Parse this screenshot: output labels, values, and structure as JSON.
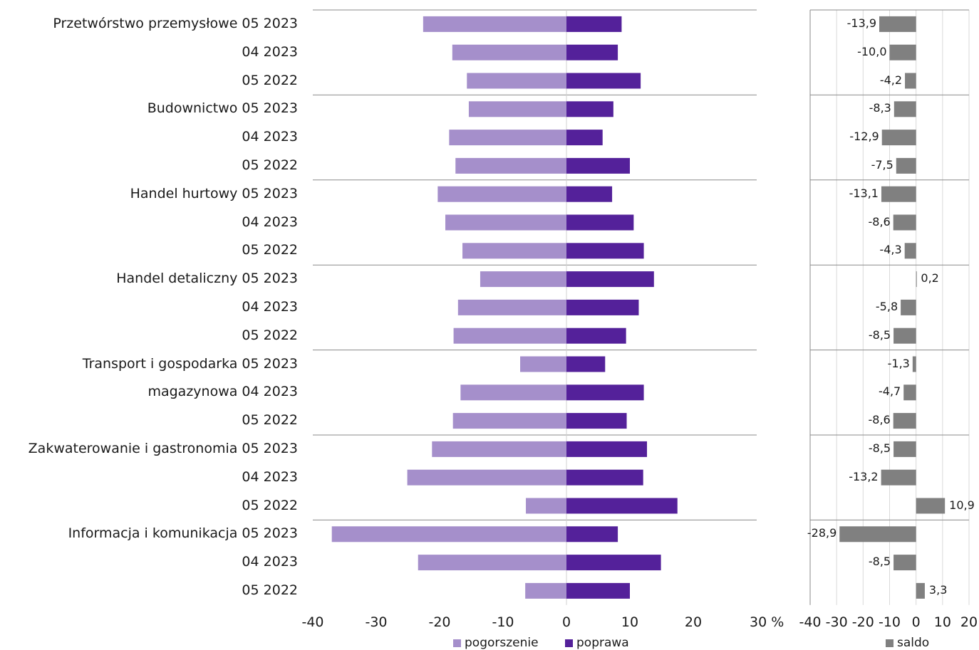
{
  "chart_data": [
    {
      "type": "bar",
      "orientation": "horizontal",
      "groups": [
        "Przetwórstwo przemysłowe",
        "Budownictwo",
        "Handel hurtowy",
        "Handel detaliczny",
        "Transport i gospodarka magazynowa",
        "Zakwaterowanie i gastronomia",
        "Informacja i komunikacja"
      ],
      "rows": [
        {
          "group": "Przetwórstwo przemysłowe",
          "period": "05 2023",
          "pogorszenie": -22.6,
          "poprawa": 8.7
        },
        {
          "group": "",
          "period": "04 2023",
          "pogorszenie": -18.0,
          "poprawa": 8.1
        },
        {
          "group": "",
          "period": "05 2022",
          "pogorszenie": -15.7,
          "poprawa": 11.7
        },
        {
          "group": "Budownictwo",
          "period": "05 2023",
          "pogorszenie": -15.4,
          "poprawa": 7.4
        },
        {
          "group": "",
          "period": "04 2023",
          "pogorszenie": -18.5,
          "poprawa": 5.7
        },
        {
          "group": "",
          "period": "05 2022",
          "pogorszenie": -17.5,
          "poprawa": 10.0
        },
        {
          "group": "Handel hurtowy",
          "period": "05 2023",
          "pogorszenie": -20.3,
          "poprawa": 7.2
        },
        {
          "group": "",
          "period": "04 2023",
          "pogorszenie": -19.1,
          "poprawa": 10.6
        },
        {
          "group": "",
          "period": "05 2022",
          "pogorszenie": -16.4,
          "poprawa": 12.2
        },
        {
          "group": "Handel detaliczny",
          "period": "05 2023",
          "pogorszenie": -13.6,
          "poprawa": 13.8
        },
        {
          "group": "",
          "period": "04 2023",
          "pogorszenie": -17.1,
          "poprawa": 11.4
        },
        {
          "group": "",
          "period": "05 2022",
          "pogorszenie": -17.8,
          "poprawa": 9.4
        },
        {
          "group": "Transport i gospodarka",
          "period": "05 2023",
          "pogorszenie": -7.3,
          "poprawa": 6.1
        },
        {
          "group": "magazynowa",
          "period": "04 2023",
          "pogorszenie": -16.7,
          "poprawa": 12.2
        },
        {
          "group": "",
          "period": "05 2022",
          "pogorszenie": -17.9,
          "poprawa": 9.5
        },
        {
          "group": "Zakwaterowanie i gastronomia",
          "period": "05 2023",
          "pogorszenie": -21.2,
          "poprawa": 12.7
        },
        {
          "group": "",
          "period": "04 2023",
          "pogorszenie": -25.1,
          "poprawa": 12.1
        },
        {
          "group": "",
          "period": "05 2022",
          "pogorszenie": -6.4,
          "poprawa": 17.5
        },
        {
          "group": "Informacja i komunikacja",
          "period": "05 2023",
          "pogorszenie": -37.0,
          "poprawa": 8.1
        },
        {
          "group": "",
          "period": "04 2023",
          "pogorszenie": -23.4,
          "poprawa": 14.9
        },
        {
          "group": "",
          "period": "05 2022",
          "pogorszenie": -6.5,
          "poprawa": 10.0
        }
      ],
      "series": [
        {
          "name": "pogorszenie",
          "color": "#a58fcb"
        },
        {
          "name": "poprawa",
          "color": "#54219a"
        }
      ],
      "xlim": [
        -40,
        30
      ],
      "xticks": [
        "-40",
        "-30",
        "-20",
        "-10",
        "0",
        "10",
        "20",
        "30 %"
      ],
      "grid": false,
      "legend": "bottom"
    },
    {
      "type": "bar",
      "orientation": "horizontal",
      "series": [
        {
          "name": "saldo",
          "color": "#808080"
        }
      ],
      "values": [
        -13.9,
        -10.0,
        -4.2,
        -8.3,
        -12.9,
        -7.5,
        -13.1,
        -8.6,
        -4.3,
        0.2,
        -5.8,
        -8.5,
        -1.3,
        -4.7,
        -8.6,
        -8.5,
        -13.2,
        10.9,
        -28.9,
        -8.5,
        3.3
      ],
      "labels": [
        "-13,9",
        "-10,0",
        "-4,2",
        "-8,3",
        "-12,9",
        "-7,5",
        "-13,1",
        "-8,6",
        "-4,3",
        "0,2",
        "-5,8",
        "-8,5",
        "-1,3",
        "-4,7",
        "-8,6",
        "-8,5",
        "-13,2",
        "10,9",
        "-28,9",
        "-8,5",
        "3,3"
      ],
      "xlim": [
        -40,
        20
      ],
      "xticks": [
        "-40",
        "-30",
        "-20",
        "-10",
        "0",
        "10",
        "20"
      ],
      "grid": true,
      "legend": "bottom"
    }
  ]
}
